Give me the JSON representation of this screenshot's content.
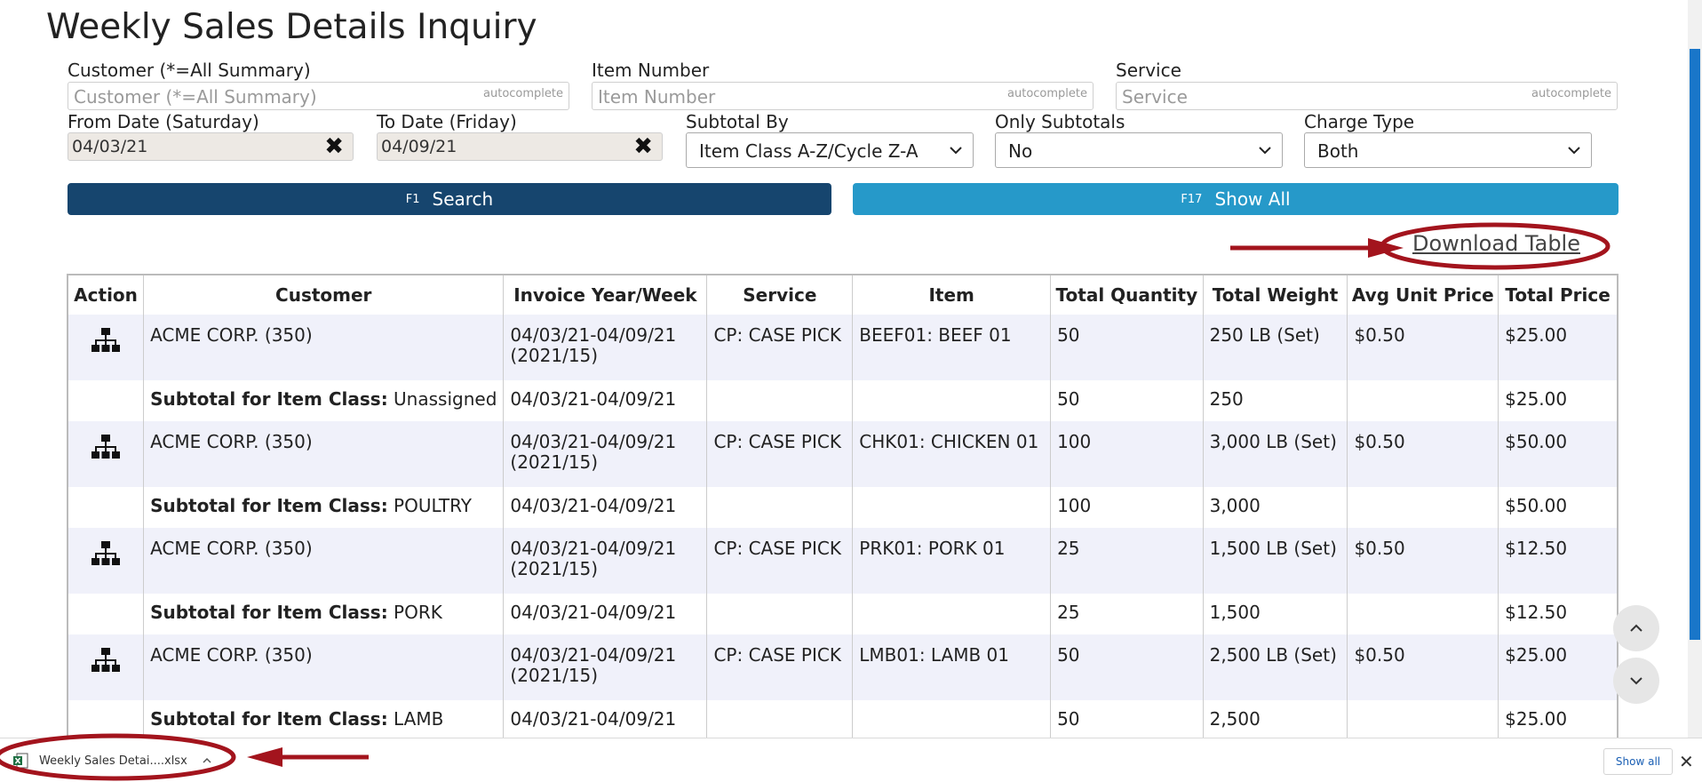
{
  "page": {
    "title": "Weekly Sales Details Inquiry"
  },
  "filters": {
    "customer": {
      "label": "Customer (*=All Summary)",
      "placeholder": "Customer (*=All Summary)",
      "hint": "autocomplete"
    },
    "item_number": {
      "label": "Item Number",
      "placeholder": "Item Number",
      "hint": "autocomplete"
    },
    "service": {
      "label": "Service",
      "placeholder": "Service",
      "hint": "autocomplete"
    },
    "from_date": {
      "label": "From Date (Saturday)",
      "value": "04/03/21"
    },
    "to_date": {
      "label": "To Date (Friday)",
      "value": "04/09/21"
    },
    "subtotal_by": {
      "label": "Subtotal By",
      "value": "Item Class A-Z/Cycle Z-A"
    },
    "only_subtotals": {
      "label": "Only Subtotals",
      "value": "No"
    },
    "charge_type": {
      "label": "Charge Type",
      "value": "Both"
    }
  },
  "buttons": {
    "search": {
      "key": "F1",
      "label": "Search"
    },
    "show_all": {
      "key": "F17",
      "label": "Show All"
    },
    "download": "Download Table"
  },
  "table": {
    "headers": [
      "Action",
      "Customer",
      "Invoice Year/Week",
      "Service",
      "Item",
      "Total Quantity",
      "Total Weight",
      "Avg Unit Price",
      "Total Price"
    ],
    "rows": [
      {
        "customer": "ACME CORP. (350)",
        "week": "04/03/21-04/09/21",
        "week2": "(2021/15)",
        "service": "CP: CASE PICK",
        "item": "BEEF01: BEEF 01",
        "qty": "50",
        "weight": "250 LB (Set)",
        "avg": "$0.50",
        "total": "$25.00"
      },
      {
        "sub_label": "Subtotal for Item Class:",
        "sub_value": "Unassigned",
        "week": "04/03/21-04/09/21",
        "qty": "50",
        "weight": "250",
        "total": "$25.00"
      },
      {
        "customer": "ACME CORP. (350)",
        "week": "04/03/21-04/09/21",
        "week2": "(2021/15)",
        "service": "CP: CASE PICK",
        "item": "CHK01: CHICKEN 01",
        "qty": "100",
        "weight": "3,000 LB (Set)",
        "avg": "$0.50",
        "total": "$50.00"
      },
      {
        "sub_label": "Subtotal for Item Class:",
        "sub_value": "POULTRY",
        "week": "04/03/21-04/09/21",
        "qty": "100",
        "weight": "3,000",
        "total": "$50.00"
      },
      {
        "customer": "ACME CORP. (350)",
        "week": "04/03/21-04/09/21",
        "week2": "(2021/15)",
        "service": "CP: CASE PICK",
        "item": "PRK01: PORK 01",
        "qty": "25",
        "weight": "1,500 LB (Set)",
        "avg": "$0.50",
        "total": "$12.50"
      },
      {
        "sub_label": "Subtotal for Item Class:",
        "sub_value": "PORK",
        "week": "04/03/21-04/09/21",
        "qty": "25",
        "weight": "1,500",
        "total": "$12.50"
      },
      {
        "customer": "ACME CORP. (350)",
        "week": "04/03/21-04/09/21",
        "week2": "(2021/15)",
        "service": "CP: CASE PICK",
        "item": "LMB01: LAMB 01",
        "qty": "50",
        "weight": "2,500 LB (Set)",
        "avg": "$0.50",
        "total": "$25.00"
      },
      {
        "sub_label": "Subtotal for Item Class:",
        "sub_value": "LAMB",
        "week": "04/03/21-04/09/21",
        "qty": "50",
        "weight": "2,500",
        "total": "$25.00"
      }
    ]
  },
  "download_bar": {
    "filename": "Weekly Sales Detai....xlsx",
    "show_all": "Show all",
    "close": "✕"
  },
  "colors": {
    "search_button": "#16456e",
    "show_all_button": "#2699c9",
    "annotation": "#a3141d",
    "row_shade": "#f0f1fa"
  }
}
